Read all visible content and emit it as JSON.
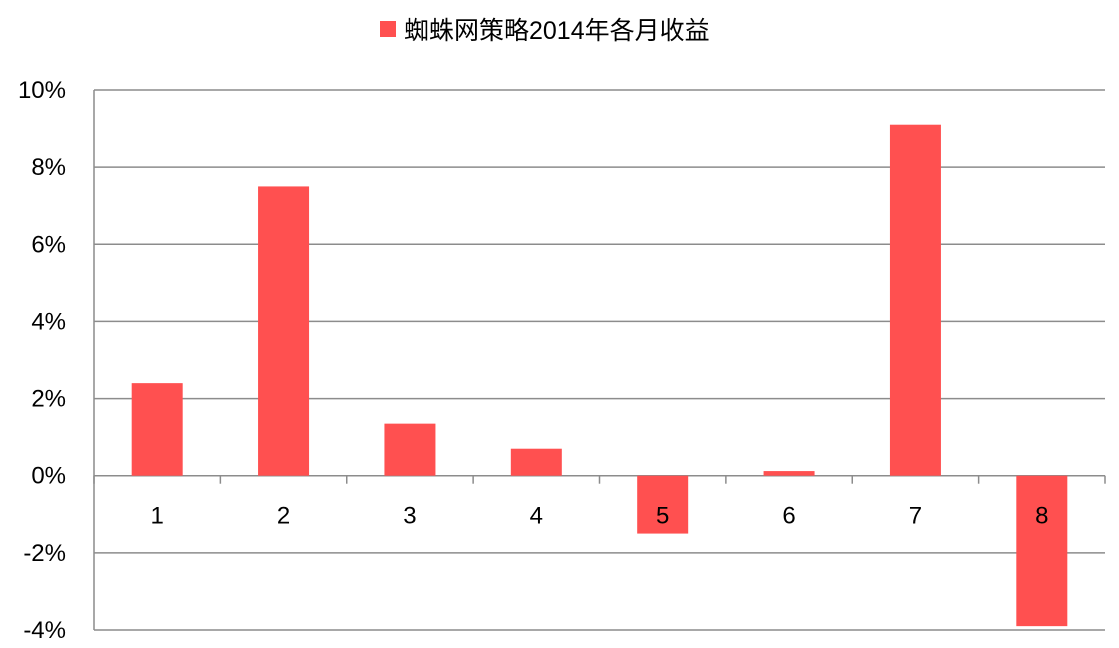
{
  "chart_data": {
    "type": "bar",
    "title": "",
    "xlabel": "",
    "ylabel": "",
    "categories": [
      "1",
      "2",
      "3",
      "4",
      "5",
      "6",
      "7",
      "8"
    ],
    "series": [
      {
        "name": "蜘蛛网策略2014年各月收益",
        "values": [
          2.4,
          7.5,
          1.35,
          0.7,
          -1.5,
          0.12,
          9.1,
          -3.9
        ]
      }
    ],
    "ylim": [
      -4,
      10
    ],
    "yticks": [
      "-4%",
      "-2%",
      "0%",
      "2%",
      "4%",
      "6%",
      "8%",
      "10%"
    ],
    "grid": true,
    "legend": "top",
    "bar_color": "#ff5050"
  }
}
